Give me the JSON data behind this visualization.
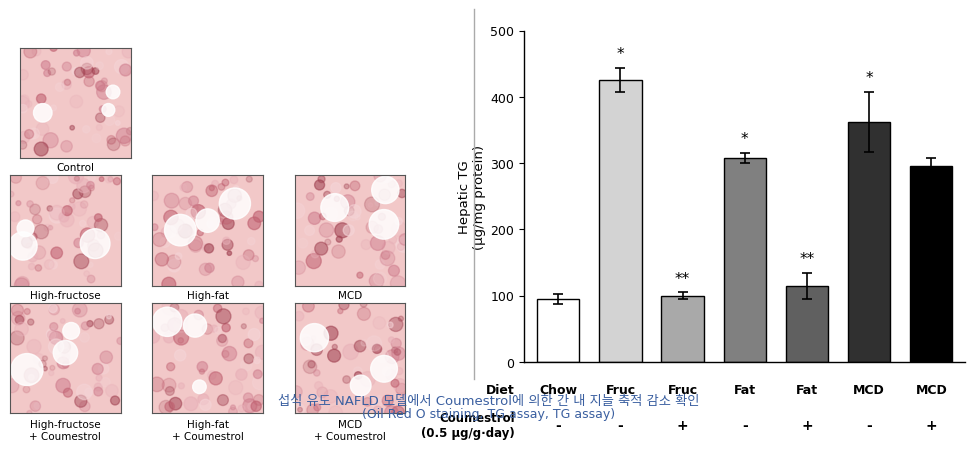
{
  "bar_values": [
    95,
    425,
    100,
    308,
    115,
    362,
    295
  ],
  "bar_errors": [
    8,
    18,
    5,
    8,
    20,
    45,
    12
  ],
  "bar_colors": [
    "#ffffff",
    "#d3d3d3",
    "#a9a9a9",
    "#808080",
    "#606060",
    "#303030",
    "#000000"
  ],
  "bar_edge_colors": [
    "#000000",
    "#000000",
    "#000000",
    "#000000",
    "#000000",
    "#000000",
    "#000000"
  ],
  "x_labels_diet": [
    "Chow",
    "Fruc",
    "Fruc",
    "Fat",
    "Fat",
    "MCD",
    "MCD"
  ],
  "x_labels_coumestrol": [
    "-",
    "-",
    "+",
    "-",
    "+",
    "-",
    "+"
  ],
  "diet_label": "Diet",
  "coumestrol_label": "Coumestrol\n(0.5 μg/g·day)",
  "ylabel": "Hepatic TG\n(μg/mg protein)",
  "ylim": [
    0,
    500
  ],
  "yticks": [
    0,
    100,
    200,
    300,
    400,
    500
  ],
  "significance": [
    "",
    "*",
    "**",
    "*",
    "**",
    "*",
    ""
  ],
  "figure_caption_line1": "섭식 유도 NAFLD 모델에서 Coumestrol에 의한 간 내 지늘 축적 감소 확인",
  "figure_caption_line2": "(Oil Red O staining, TG assay, TG assay)",
  "background_color": "#ffffff",
  "image_panel_labels": [
    "Control",
    "High-fructose",
    "High-fat",
    "MCD",
    "High-fructose\n+ Coumestrol",
    "High-fat\n+ Coumestrol",
    "MCD\n+ Coumestrol"
  ],
  "image_bg_color": "#e8a0a8",
  "image_bg_color2": "#d4707a",
  "caption_color": "#3a5fa0"
}
